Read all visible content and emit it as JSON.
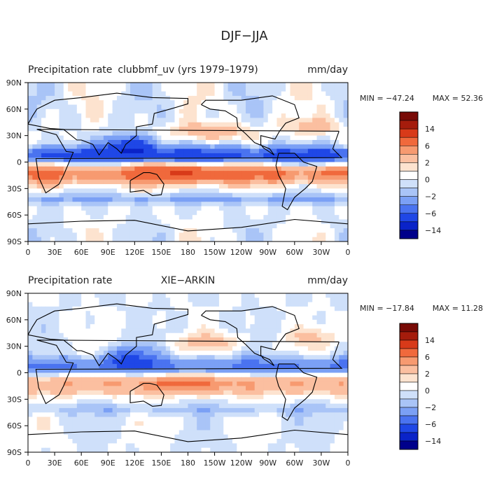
{
  "figure": {
    "title": "DJF−JJA"
  },
  "chart_data": [
    {
      "type": "heatmap",
      "variable": "Precipitation rate",
      "dataset": "clubbmf_uv (yrs 1979–1979)",
      "units": "mm/day",
      "min_label": "MIN = −47.24",
      "max_label": "MAX = 52.36",
      "min": -47.24,
      "max": 52.36,
      "x_ticks": [
        "0",
        "30E",
        "60E",
        "90E",
        "120E",
        "150E",
        "180",
        "150W",
        "120W",
        "90W",
        "60W",
        "30W",
        "0"
      ],
      "y_ticks": [
        "90N",
        "60N",
        "30N",
        "0",
        "30S",
        "60S",
        "90S"
      ],
      "xlim": [
        0,
        360
      ],
      "ylim": [
        -90,
        90
      ],
      "colorbar_labels": [
        "14",
        "6",
        "2",
        "0",
        "−2",
        "−6",
        "−14"
      ],
      "colorbar_levels": [
        -20,
        -14,
        -10,
        -6,
        -4,
        -2,
        -1,
        0,
        1,
        2,
        4,
        6,
        10,
        14,
        20
      ]
    },
    {
      "type": "heatmap",
      "variable": "Precipitation rate",
      "dataset": "XIE−ARKIN",
      "units": "mm/day",
      "min_label": "MIN = −17.84",
      "max_label": "MAX = 11.28",
      "min": -17.84,
      "max": 11.28,
      "x_ticks": [
        "0",
        "30E",
        "60E",
        "90E",
        "120E",
        "150E",
        "180",
        "150W",
        "120W",
        "90W",
        "60W",
        "30W",
        "0"
      ],
      "y_ticks": [
        "90N",
        "60N",
        "30N",
        "0",
        "30S",
        "60S",
        "90S"
      ],
      "xlim": [
        0,
        360
      ],
      "ylim": [
        -90,
        90
      ],
      "colorbar_labels": [
        "14",
        "6",
        "2",
        "0",
        "−2",
        "−6",
        "−14"
      ],
      "colorbar_levels": [
        -20,
        -14,
        -10,
        -6,
        -4,
        -2,
        -1,
        0,
        1,
        2,
        4,
        6,
        10,
        14,
        20
      ]
    }
  ],
  "colors": {
    "scale": [
      "#00008b",
      "#0a23c8",
      "#1f47e6",
      "#4a73f0",
      "#7ba0f5",
      "#a9c4f7",
      "#cfe0fa",
      "#ffffff",
      "#fde3cf",
      "#fbbfa0",
      "#f79a70",
      "#f0693c",
      "#d83a19",
      "#a51c0c",
      "#780a06"
    ],
    "land": "#000000"
  }
}
